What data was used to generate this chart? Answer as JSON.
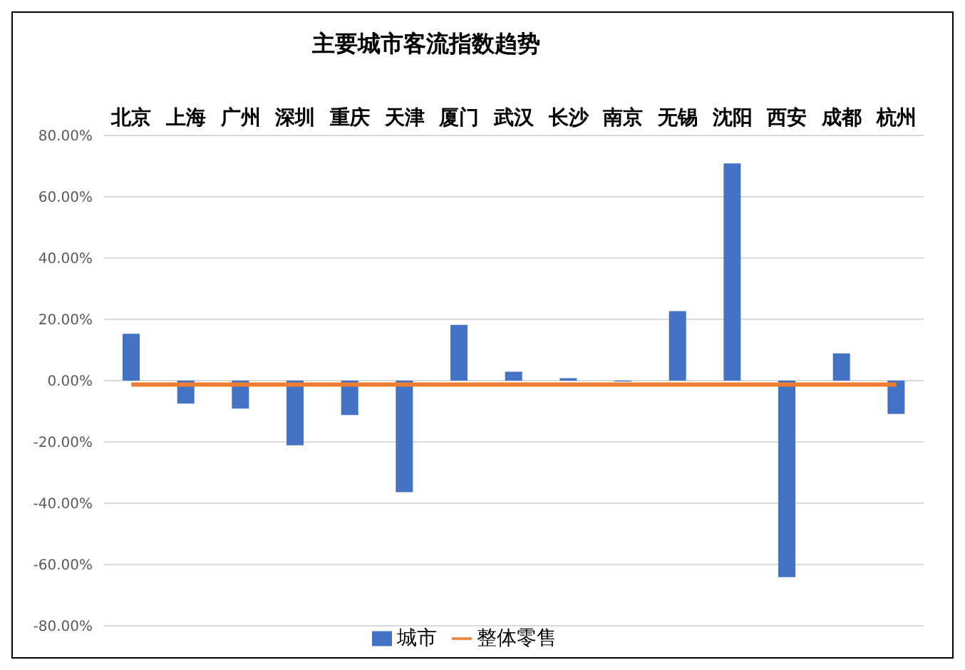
{
  "chart_data": {
    "type": "bar",
    "title": "主要城市客流指数趋势",
    "categories": [
      "北京",
      "上海",
      "广州",
      "深圳",
      "重庆",
      "天津",
      "厦门",
      "武汉",
      "长沙",
      "南京",
      "无锡",
      "沈阳",
      "西安",
      "成都",
      "杭州"
    ],
    "series": [
      {
        "name": "城市",
        "color": "#4472c4",
        "values": [
          15.3,
          -7.5,
          -9.1,
          -21.1,
          -11.2,
          -36.4,
          18.2,
          2.9,
          0.8,
          -0.3,
          22.7,
          70.9,
          -64.1,
          8.9,
          -10.9
        ]
      },
      {
        "name": "整体零售",
        "type": "line",
        "color": "#ed7d31",
        "values": [
          -1.3,
          -1.3,
          -1.3,
          -1.3,
          -1.3,
          -1.3,
          -1.3,
          -1.3,
          -1.3,
          -1.3,
          -1.3,
          -1.3,
          -1.3,
          -1.3,
          -1.3
        ]
      }
    ],
    "ylim": [
      -80,
      80
    ],
    "yticks": [
      {
        "value": -80,
        "label": "-80.00%"
      },
      {
        "value": -60,
        "label": "-60.00%"
      },
      {
        "value": -40,
        "label": "-40.00%"
      },
      {
        "value": -20,
        "label": "-20.00%"
      },
      {
        "value": 0,
        "label": "0.00%"
      },
      {
        "value": 20,
        "label": "20.00%"
      },
      {
        "value": 40,
        "label": "40.00%"
      },
      {
        "value": 60,
        "label": "60.00%"
      },
      {
        "value": 80,
        "label": "80.00%"
      }
    ],
    "grid": "y",
    "legend": "bottom",
    "marker": "none",
    "line_style": "solid"
  }
}
